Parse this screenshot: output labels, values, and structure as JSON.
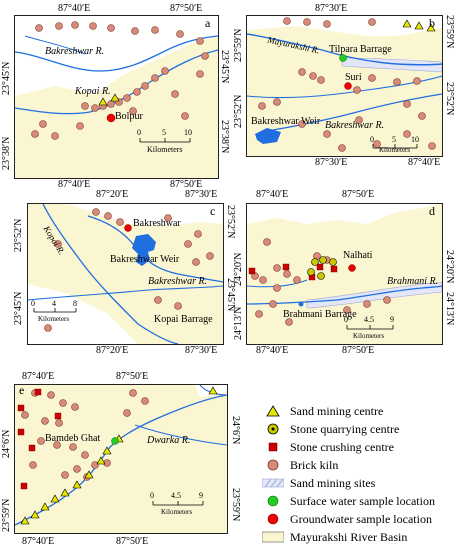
{
  "panels": {
    "a": {
      "letter": "a",
      "top_ticks": [
        "87°40′E",
        "87°50′E"
      ],
      "bottom_ticks": [
        "87°40′E",
        "87°50′E"
      ],
      "left_ticks": [
        "23°45′N",
        "23°38′N"
      ],
      "right_ticks": [
        "23°45′N",
        "23°38′N"
      ],
      "places": [
        "Bakreshwar R.",
        "Kopai R.",
        "Bolpur"
      ],
      "scale_numbers": [
        "0",
        "5",
        "10"
      ],
      "scale_unit": "Kilometers"
    },
    "b": {
      "letter": "b",
      "top_ticks": [
        "87°30′E"
      ],
      "bottom_ticks": [
        "87°30′E",
        "87°40′E"
      ],
      "left_ticks": [
        "23°59′N",
        "23°52′N"
      ],
      "right_ticks": [
        "23°59′N",
        "23°52′N"
      ],
      "places": [
        "Mayurakshi R.",
        "Tilpara Barrage",
        "Suri",
        "Bakreshwar Weir",
        "Bakreshwar R."
      ],
      "scale_numbers": [
        "0",
        "5",
        "10"
      ],
      "scale_unit": "Kilometers"
    },
    "c": {
      "letter": "c",
      "top_ticks": [
        "87°20′E",
        "87°30′E"
      ],
      "bottom_ticks": [
        "87°20′E",
        "87°30′E"
      ],
      "left_ticks": [
        "23°52′N",
        "23°45′N"
      ],
      "right_ticks": [
        "23°52′N",
        "23°45′N"
      ],
      "places": [
        "Kopai R.",
        "Bakreshwar",
        "Bakreshwar Weir",
        "Bakreshwar R.",
        "Kopai Barrage"
      ],
      "scale_numbers": [
        "0",
        "4",
        "8"
      ],
      "scale_unit": "Kilometers"
    },
    "d": {
      "letter": "d",
      "top_ticks": [
        "87°40′E",
        "87°50′E"
      ],
      "bottom_ticks": [
        "87°40′E",
        "87°50′E"
      ],
      "left_ticks": [
        "24°20′N",
        "24°13′N"
      ],
      "right_ticks": [
        "24°20′N",
        "24°13′N"
      ],
      "places": [
        "Nalhati",
        "Brahmani R.",
        "Brahmani Barrage"
      ],
      "scale_numbers": [
        "0",
        "4.5",
        "9"
      ],
      "scale_unit": "Kilometers"
    },
    "e": {
      "letter": "e",
      "top_ticks": [
        "87°40′E",
        "87°50′E"
      ],
      "bottom_ticks": [
        "87°40′E",
        "87°50′E"
      ],
      "left_ticks": [
        "24°6′N",
        "23°59′N"
      ],
      "right_ticks": [
        "24°6′N",
        "23°59′N"
      ],
      "places": [
        "Bamdeb Ghat",
        "Dwarka R."
      ],
      "scale_numbers": [
        "0",
        "4.5",
        "9"
      ],
      "scale_unit": "Kilometers"
    }
  },
  "legend": [
    {
      "symbol": "triangle",
      "color": "#e6e600",
      "label": "Sand mining centre"
    },
    {
      "symbol": "circle-dot",
      "color": "#c9c900",
      "label": "Stone quarrying centre"
    },
    {
      "symbol": "square",
      "color": "#cc0000",
      "label": "Stone crushing centre"
    },
    {
      "symbol": "circle",
      "color": "#d88a7a",
      "label": "Brick kiln"
    },
    {
      "symbol": "hatch",
      "color": "#9aa6d6",
      "label": "Sand mining  sites"
    },
    {
      "symbol": "circle",
      "color": "#22cc22",
      "label": "Surface water sample location"
    },
    {
      "symbol": "circle",
      "color": "#ee0000",
      "label": "Groundwater sample location"
    },
    {
      "symbol": "rect",
      "color": "#fbf6d2",
      "label": "Mayurakshi River Basin"
    }
  ],
  "colors": {
    "basin": "#fbf6d2",
    "river": "#1f6fe0",
    "brick": "#d88a7a",
    "sand": "#e6e600",
    "crushing": "#cc0000"
  }
}
